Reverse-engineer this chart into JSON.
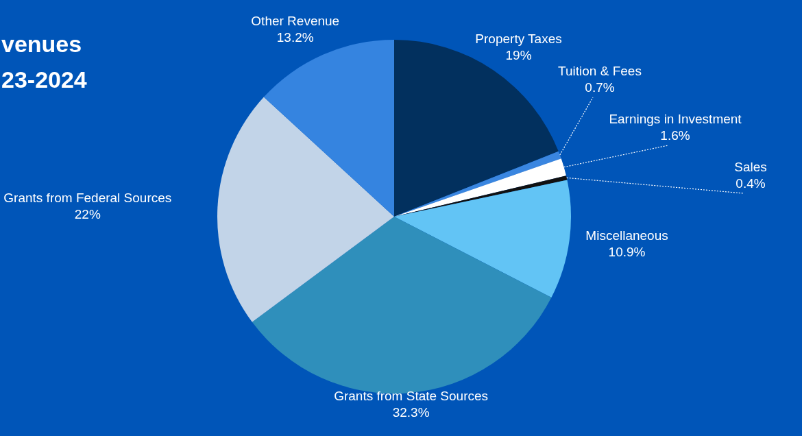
{
  "chart_data": {
    "type": "pie",
    "title": "venues",
    "subtitle": "23-2024",
    "categories": [
      "Property Taxes",
      "Tuition & Fees",
      "Earnings in Investment",
      "Sales",
      "Miscellaneous",
      "Grants from State Sources",
      "Grants from Federal Sources",
      "Other Revenue"
    ],
    "values": [
      19,
      0.7,
      1.6,
      0.4,
      10.9,
      32.3,
      22,
      13.2
    ],
    "value_labels": [
      "19%",
      "0.7%",
      "1.6%",
      "0.4%",
      "10.9%",
      "32.3%",
      "22%",
      "13.2%"
    ],
    "colors": [
      "#02305e",
      "#3a86e0",
      "#ffffff",
      "#111111",
      "#62c4f5",
      "#2f8fbb",
      "#c2d4e8",
      "#3584e0"
    ]
  }
}
